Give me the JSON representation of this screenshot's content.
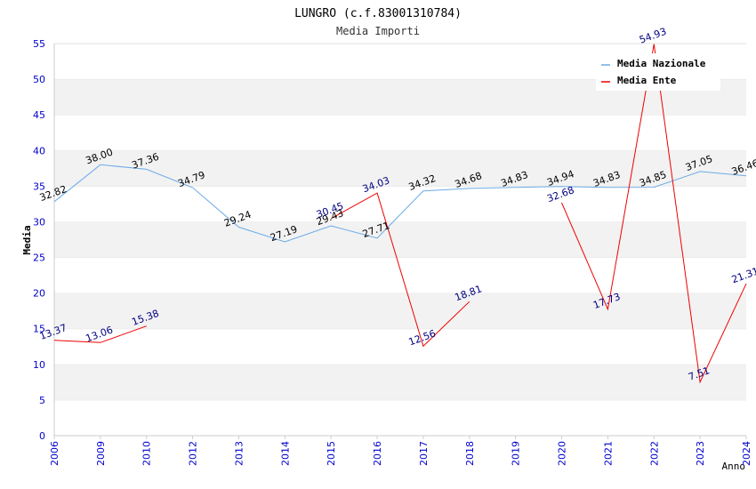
{
  "chart_data": {
    "type": "line",
    "title": "LUNGRO (c.f.83001310784)",
    "subtitle": "Media Importi",
    "xlabel": "Anno",
    "ylabel": "Media",
    "ylim": [
      0,
      55
    ],
    "yticks": [
      "0",
      "5",
      "10",
      "15",
      "20",
      "25",
      "30",
      "35",
      "40",
      "45",
      "50",
      "55"
    ],
    "categories": [
      "2006",
      "2009",
      "2010",
      "2012",
      "2013",
      "2014",
      "2015",
      "2016",
      "2017",
      "2018",
      "2019",
      "2020",
      "2021",
      "2022",
      "2023",
      "2024"
    ],
    "grid": "horizontal bands",
    "legend_position": "top-right",
    "series": [
      {
        "name": "Media Nazionale",
        "color": "#6aaae6",
        "label_color": "#000000",
        "values": [
          32.82,
          38.0,
          37.36,
          34.79,
          29.24,
          27.19,
          29.43,
          27.71,
          34.32,
          34.68,
          34.83,
          34.94,
          34.83,
          34.85,
          37.05,
          36.46
        ],
        "labels": [
          "32.82",
          "38.00",
          "37.36",
          "34.79",
          "29.24",
          "27.19",
          "29.43",
          "27.71",
          "34.32",
          "34.68",
          "34.83",
          "34.94",
          "34.83",
          "34.85",
          "37.05",
          "36.46"
        ]
      },
      {
        "name": "Media Ente",
        "color": "#ee0000",
        "label_color": "#000080",
        "values": [
          13.37,
          13.06,
          15.38,
          null,
          null,
          null,
          30.45,
          34.03,
          12.56,
          18.81,
          null,
          32.68,
          17.73,
          54.93,
          7.51,
          21.31
        ],
        "labels": [
          "13.37",
          "13.06",
          "15.38",
          null,
          null,
          null,
          "30.45",
          "34.03",
          "12.56",
          "18.81",
          null,
          "32.68",
          "17.73",
          "54.93",
          "7.51",
          "21.31"
        ]
      }
    ]
  }
}
